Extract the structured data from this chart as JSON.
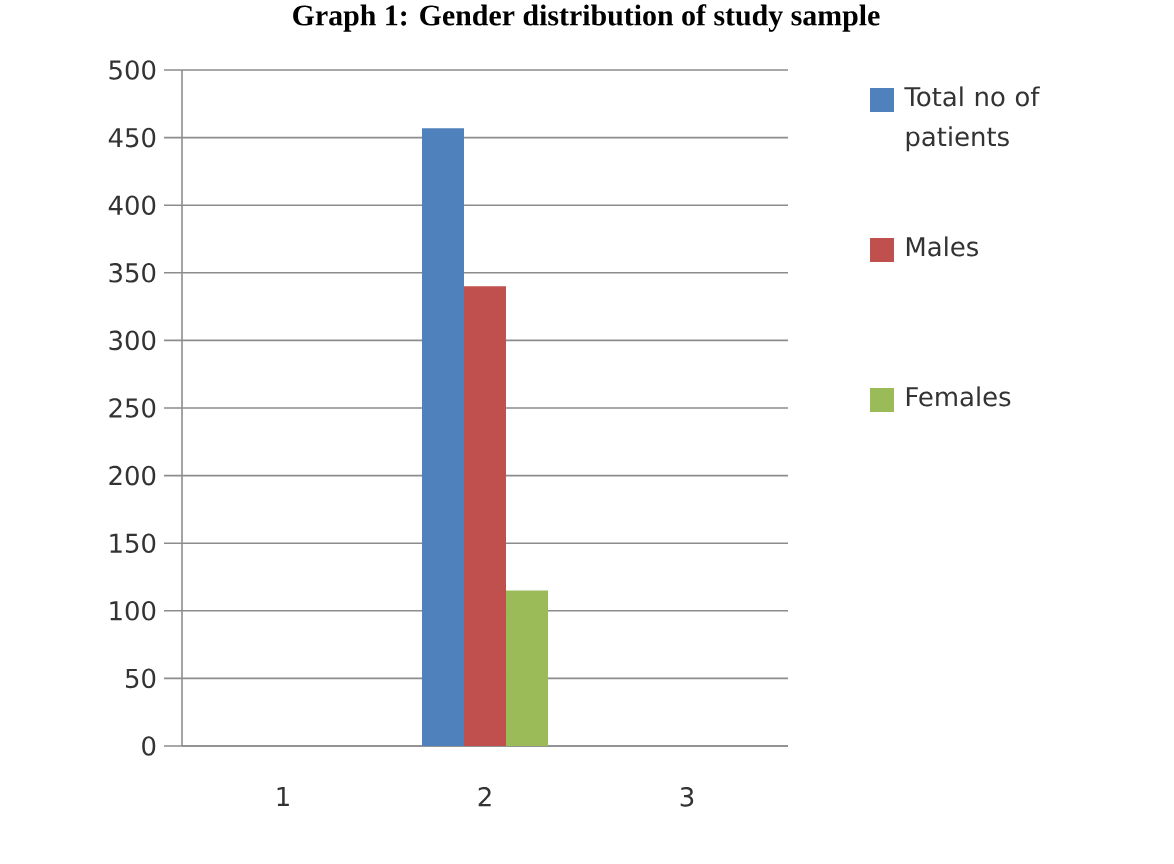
{
  "chart_data": {
    "type": "bar",
    "title": "Graph 1: Gender distribution of study sample",
    "categories": [
      "1",
      "2",
      "3"
    ],
    "series": [
      {
        "name": "Total no of patients",
        "color": "#4f81bd",
        "values": [
          null,
          457,
          null
        ]
      },
      {
        "name": "Males",
        "color": "#c0504d",
        "values": [
          null,
          340,
          null
        ]
      },
      {
        "name": "Females",
        "color": "#9bbb59",
        "values": [
          null,
          115,
          null
        ]
      }
    ],
    "ylim": [
      0,
      500
    ],
    "yticks": [
      0,
      50,
      100,
      150,
      200,
      250,
      300,
      350,
      400,
      450,
      500
    ],
    "grid": "y",
    "legend": "right"
  }
}
